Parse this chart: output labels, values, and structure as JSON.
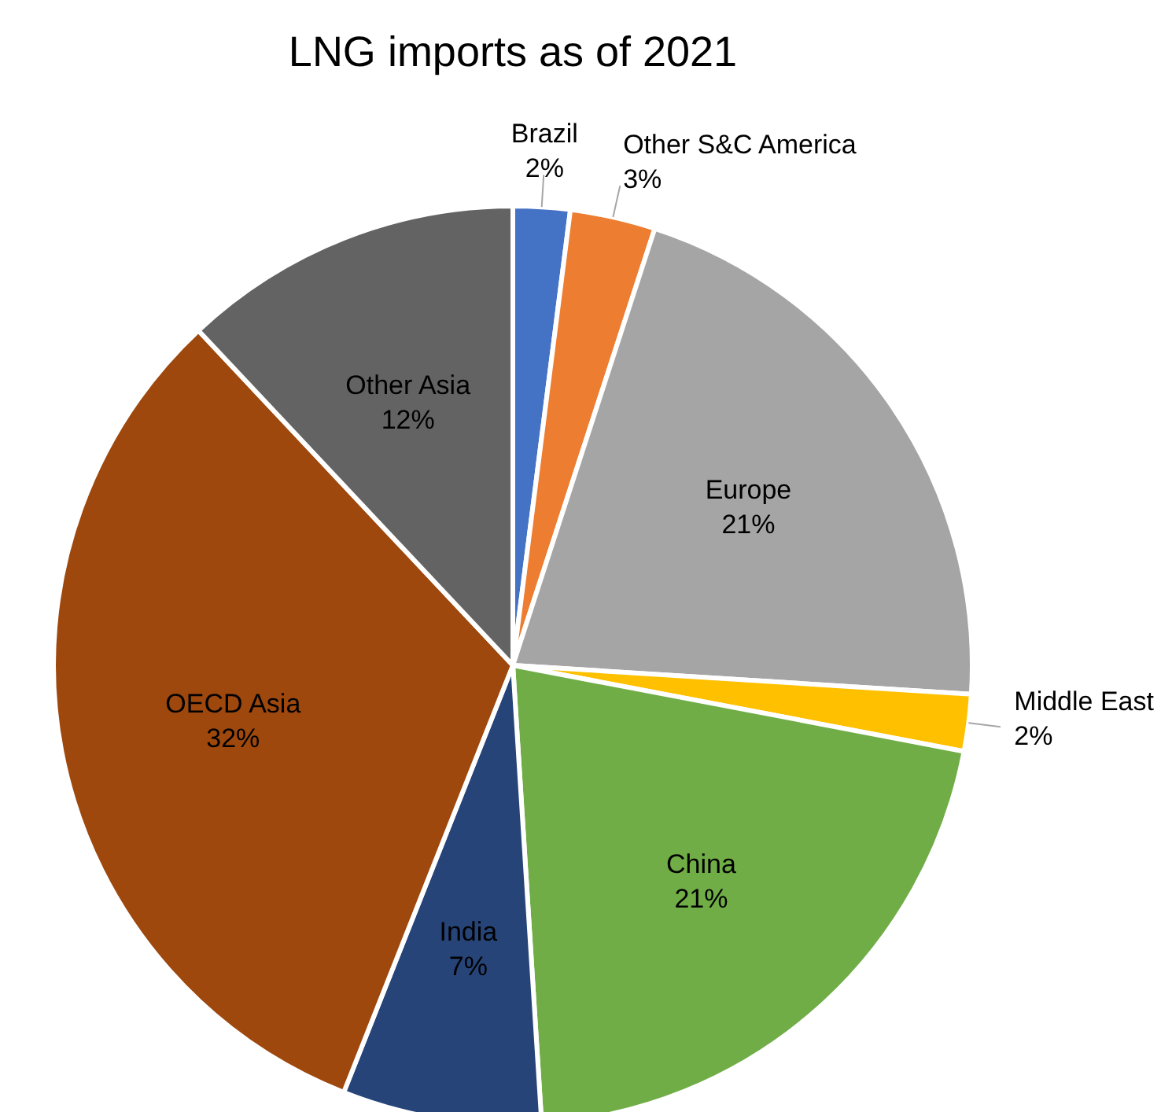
{
  "chart_data": {
    "type": "pie",
    "title": "LNG imports as of 2021",
    "categories": [
      "Brazil",
      "Other S&C America",
      "Europe",
      "Middle East",
      "China",
      "India",
      "OECD Asia",
      "Other Asia"
    ],
    "values": [
      2,
      3,
      21,
      2,
      21,
      7,
      32,
      12
    ],
    "value_labels": [
      "2%",
      "3%",
      "21%",
      "2%",
      "21%",
      "7%",
      "32%",
      "12%"
    ],
    "colors": [
      "#4472c4",
      "#ed7d31",
      "#a5a5a5",
      "#ffc000",
      "#70ad47",
      "#264478",
      "#9e480e",
      "#636363"
    ]
  }
}
